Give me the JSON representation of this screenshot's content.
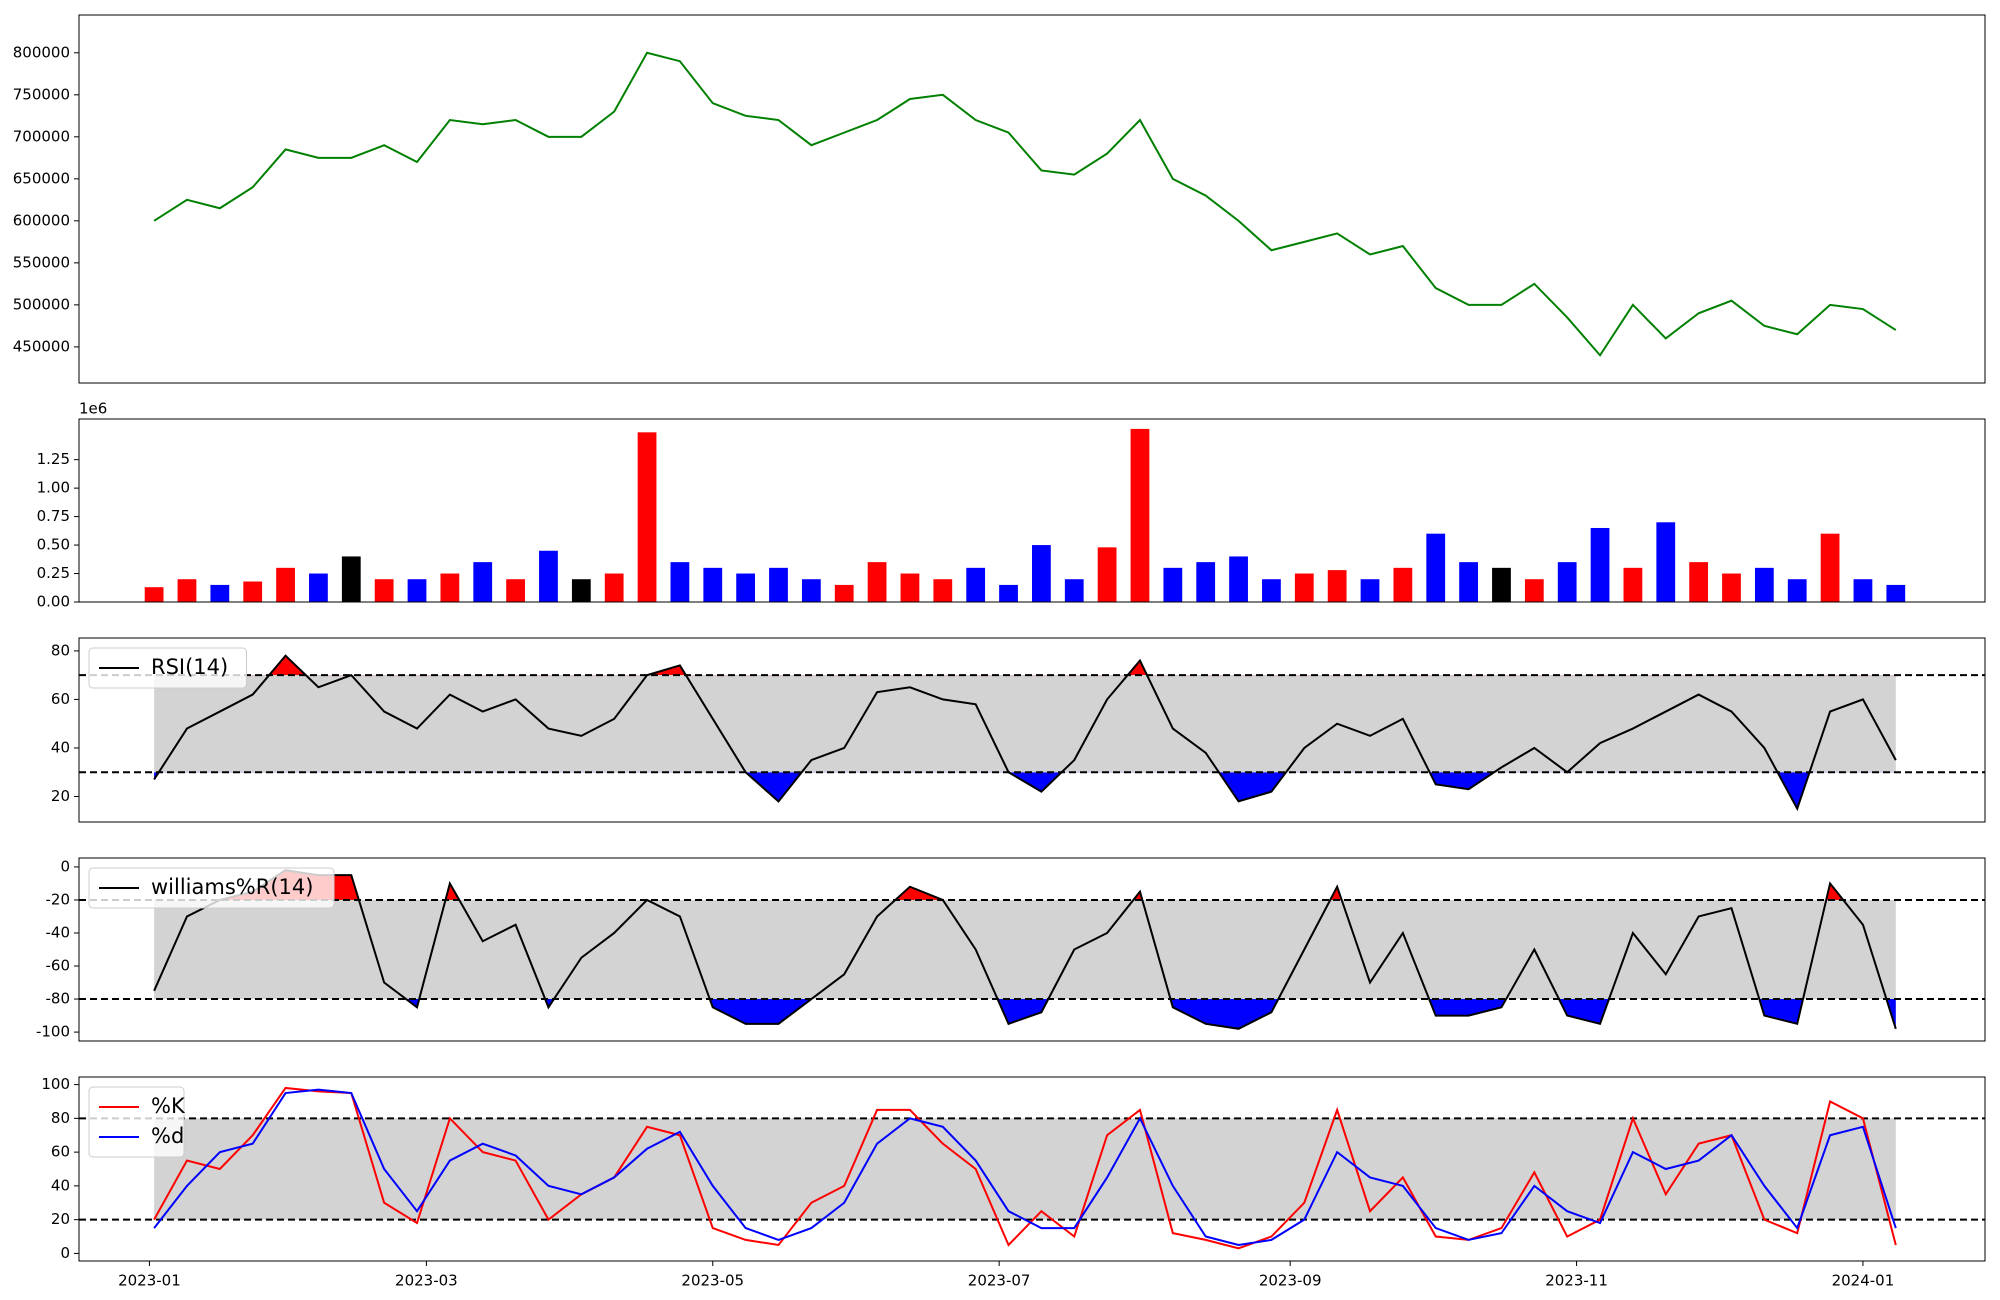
{
  "chart_data": [
    {
      "type": "line",
      "x": [
        1,
        8,
        15,
        22,
        29,
        36,
        43,
        50,
        57,
        64,
        71,
        78,
        85,
        92,
        99,
        106,
        113,
        120,
        127,
        134,
        141,
        148,
        155,
        162,
        169,
        176,
        183,
        190,
        197,
        204,
        211,
        218,
        225,
        232,
        239,
        246,
        253,
        260,
        267,
        274,
        281,
        288,
        295,
        302,
        309,
        316,
        323,
        330,
        337,
        344,
        351,
        358,
        365,
        372
      ],
      "series": [
        {
          "color": "green",
          "values": [
            600000,
            625000,
            615000,
            640000,
            685000,
            675000,
            675000,
            690000,
            670000,
            720000,
            715000,
            720000,
            700000,
            700000,
            730000,
            800000,
            790000,
            740000,
            725000,
            720000,
            690000,
            705000,
            720000,
            745000,
            750000,
            720000,
            705000,
            660000,
            655000,
            680000,
            720000,
            650000,
            630000,
            600000,
            565000,
            575000,
            585000,
            560000,
            570000,
            520000,
            500000,
            500000,
            525000,
            485000,
            440000,
            500000,
            460000,
            490000,
            505000,
            475000,
            465000,
            500000,
            495000,
            470000
          ]
        }
      ],
      "xlim": [
        -15,
        391
      ],
      "ylim": [
        407000,
        845000
      ],
      "yticks": [
        450000,
        500000,
        550000,
        600000,
        650000,
        700000,
        750000,
        800000
      ]
    },
    {
      "type": "bar",
      "offset_label": "1e6",
      "x": [
        1,
        8,
        15,
        22,
        29,
        36,
        43,
        50,
        57,
        64,
        71,
        78,
        85,
        92,
        99,
        106,
        113,
        120,
        127,
        134,
        141,
        148,
        155,
        162,
        169,
        176,
        183,
        190,
        197,
        204,
        211,
        218,
        225,
        232,
        239,
        246,
        253,
        260,
        267,
        274,
        281,
        288,
        295,
        302,
        309,
        316,
        323,
        330,
        337,
        344,
        351,
        358,
        365,
        372
      ],
      "values": [
        130000,
        200000,
        150000,
        180000,
        300000,
        250000,
        400000,
        200000,
        200000,
        250000,
        350000,
        200000,
        450000,
        200000,
        250000,
        1490000,
        350000,
        300000,
        250000,
        300000,
        200000,
        150000,
        350000,
        250000,
        200000,
        300000,
        150000,
        500000,
        200000,
        480000,
        1520000,
        300000,
        350000,
        400000,
        200000,
        250000,
        280000,
        200000,
        300000,
        600000,
        350000,
        300000,
        200000,
        350000,
        650000,
        300000,
        700000,
        350000,
        250000,
        300000,
        200000,
        600000,
        200000,
        150000
      ],
      "colors": [
        "red",
        "red",
        "blue",
        "red",
        "red",
        "blue",
        "black",
        "red",
        "blue",
        "red",
        "blue",
        "red",
        "blue",
        "black",
        "red",
        "red",
        "blue",
        "blue",
        "blue",
        "blue",
        "blue",
        "red",
        "red",
        "red",
        "red",
        "blue",
        "blue",
        "blue",
        "blue",
        "red",
        "red",
        "blue",
        "blue",
        "blue",
        "blue",
        "red",
        "red",
        "blue",
        "red",
        "blue",
        "blue",
        "black",
        "red",
        "blue",
        "blue",
        "red",
        "blue",
        "red",
        "red",
        "blue",
        "blue",
        "red",
        "blue",
        "blue"
      ],
      "xlim": [
        -15,
        391
      ],
      "ylim": [
        0,
        1607000
      ],
      "yticks": [
        {
          "value": 0,
          "label": "0.00"
        },
        {
          "value": 250000,
          "label": "0.25"
        },
        {
          "value": 500000,
          "label": "0.50"
        },
        {
          "value": 750000,
          "label": "0.75"
        },
        {
          "value": 1000000,
          "label": "1.00"
        },
        {
          "value": 1250000,
          "label": "1.25"
        }
      ]
    },
    {
      "type": "oscillator",
      "x": [
        1,
        8,
        15,
        22,
        29,
        36,
        43,
        50,
        57,
        64,
        71,
        78,
        85,
        92,
        99,
        106,
        113,
        120,
        127,
        134,
        141,
        148,
        155,
        162,
        169,
        176,
        183,
        190,
        197,
        204,
        211,
        218,
        225,
        232,
        239,
        246,
        253,
        260,
        267,
        274,
        281,
        288,
        295,
        302,
        309,
        316,
        323,
        330,
        337,
        344,
        351,
        358,
        365,
        372
      ],
      "series": [
        {
          "name": "RSI(14)",
          "color": "black",
          "values": [
            27,
            48,
            55,
            62,
            78,
            65,
            70,
            55,
            48,
            62,
            55,
            60,
            48,
            45,
            52,
            70,
            74,
            52,
            30,
            18,
            35,
            40,
            63,
            65,
            60,
            58,
            30,
            22,
            35,
            60,
            76,
            48,
            38,
            18,
            22,
            40,
            50,
            45,
            52,
            25,
            23,
            32,
            40,
            30,
            42,
            48,
            55,
            62,
            55,
            40,
            15,
            55,
            60,
            35
          ]
        }
      ],
      "thresholds": [
        30,
        70
      ],
      "band_color": "#d3d3d3",
      "fill_above": "red",
      "fill_below": "blue",
      "xlim": [
        -15,
        391
      ],
      "ylim": [
        9.5,
        85.3
      ],
      "yticks": [
        20,
        40,
        60,
        80
      ],
      "legend": "upper left"
    },
    {
      "type": "oscillator",
      "x": [
        1,
        8,
        15,
        22,
        29,
        36,
        43,
        50,
        57,
        64,
        71,
        78,
        85,
        92,
        99,
        106,
        113,
        120,
        127,
        134,
        141,
        148,
        155,
        162,
        169,
        176,
        183,
        190,
        197,
        204,
        211,
        218,
        225,
        232,
        239,
        246,
        253,
        260,
        267,
        274,
        281,
        288,
        295,
        302,
        309,
        316,
        323,
        330,
        337,
        344,
        351,
        358,
        365,
        372
      ],
      "series": [
        {
          "name": "williams%R(14)",
          "color": "black",
          "values": [
            -75,
            -30,
            -20,
            -15,
            -2,
            -5,
            -5,
            -70,
            -85,
            -10,
            -45,
            -35,
            -85,
            -55,
            -40,
            -20,
            -30,
            -85,
            -95,
            -95,
            -80,
            -65,
            -30,
            -12,
            -20,
            -50,
            -95,
            -88,
            -50,
            -40,
            -15,
            -85,
            -95,
            -98,
            -88,
            -50,
            -12,
            -70,
            -40,
            -90,
            -90,
            -85,
            -50,
            -90,
            -95,
            -40,
            -65,
            -30,
            -25,
            -90,
            -95,
            -10,
            -35,
            -98
          ]
        }
      ],
      "thresholds": [
        -80,
        -20
      ],
      "band_color": "#d3d3d3",
      "fill_above": "red",
      "fill_below": "blue",
      "xlim": [
        -15,
        391
      ],
      "ylim": [
        -105.4,
        5.4
      ],
      "yticks": [
        -100,
        -80,
        -60,
        -40,
        -20,
        0
      ],
      "legend": "upper left"
    },
    {
      "type": "oscillator",
      "x": [
        1,
        8,
        15,
        22,
        29,
        36,
        43,
        50,
        57,
        64,
        71,
        78,
        85,
        92,
        99,
        106,
        113,
        120,
        127,
        134,
        141,
        148,
        155,
        162,
        169,
        176,
        183,
        190,
        197,
        204,
        211,
        218,
        225,
        232,
        239,
        246,
        253,
        260,
        267,
        274,
        281,
        288,
        295,
        302,
        309,
        316,
        323,
        330,
        337,
        344,
        351,
        358,
        365,
        372
      ],
      "series": [
        {
          "name": "%K",
          "color": "red",
          "values": [
            20,
            55,
            50,
            70,
            98,
            96,
            95,
            30,
            18,
            80,
            60,
            55,
            20,
            35,
            45,
            75,
            70,
            15,
            8,
            5,
            30,
            40,
            85,
            85,
            65,
            50,
            5,
            25,
            10,
            70,
            85,
            12,
            8,
            3,
            10,
            30,
            85,
            25,
            45,
            10,
            8,
            15,
            48,
            10,
            20,
            80,
            35,
            65,
            70,
            20,
            12,
            90,
            80,
            5
          ]
        },
        {
          "name": "%d",
          "color": "blue",
          "values": [
            15,
            40,
            60,
            65,
            95,
            97,
            95,
            50,
            25,
            55,
            65,
            58,
            40,
            35,
            45,
            62,
            72,
            40,
            15,
            8,
            15,
            30,
            65,
            80,
            75,
            55,
            25,
            15,
            15,
            45,
            80,
            40,
            10,
            5,
            8,
            20,
            60,
            45,
            40,
            15,
            8,
            12,
            40,
            25,
            18,
            60,
            50,
            55,
            70,
            40,
            15,
            70,
            75,
            15
          ]
        }
      ],
      "thresholds": [
        20,
        80
      ],
      "band_color": "#d3d3d3",
      "xlim": [
        -15,
        391
      ],
      "ylim": [
        -4.5,
        104.5
      ],
      "yticks": [
        0,
        20,
        40,
        60,
        80,
        100
      ],
      "legend": "upper left",
      "xticks": [
        {
          "value": 0,
          "label": "2023-01"
        },
        {
          "value": 59,
          "label": "2023-03"
        },
        {
          "value": 120,
          "label": "2023-05"
        },
        {
          "value": 181,
          "label": "2023-07"
        },
        {
          "value": 243,
          "label": "2023-09"
        },
        {
          "value": 304,
          "label": "2023-11"
        },
        {
          "value": 365,
          "label": "2024-01"
        }
      ]
    }
  ]
}
